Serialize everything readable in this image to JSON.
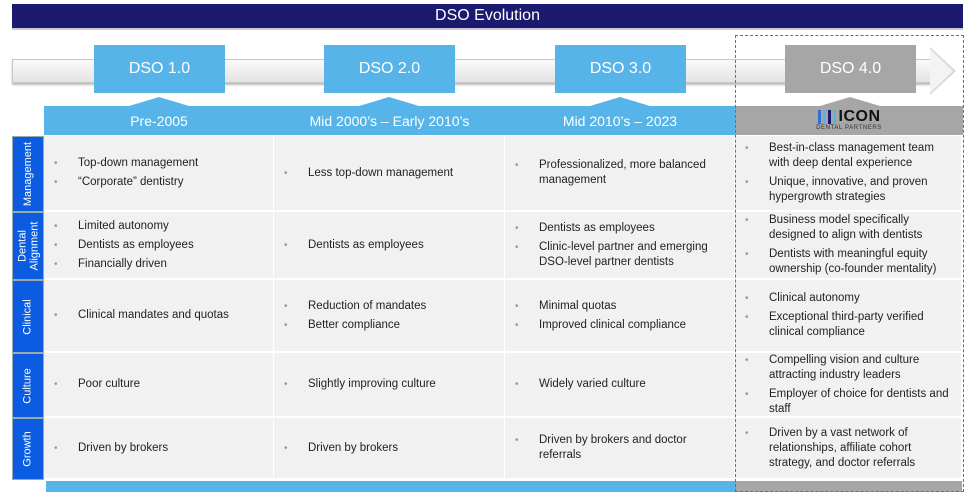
{
  "title": "DSO Evolution",
  "stages": [
    {
      "label": "DSO 1.0",
      "period": "Pre-2005"
    },
    {
      "label": "DSO 2.0",
      "period": "Mid 2000’s – Early 2010’s"
    },
    {
      "label": "DSO 3.0",
      "period": "Mid 2010’s – 2023"
    },
    {
      "label": "DSO 4.0",
      "logo_text": "ICON",
      "logo_sub": "DENTAL PARTNERS"
    }
  ],
  "colors": {
    "title_bg": "#1b1a6e",
    "accent": "#56b4e9",
    "row_label": "#0b5ce0",
    "highlight": "#a6a6a6",
    "dashed_border": "#2b78e4"
  },
  "rows": [
    {
      "label": "Management",
      "cells": [
        [
          "Top-down management",
          "“Corporate” dentistry"
        ],
        [
          "Less top-down management"
        ],
        [
          "Professionalized, more balanced management"
        ],
        [
          "Best-in-class management team with deep dental experience",
          "Unique, innovative, and proven hypergrowth strategies"
        ]
      ]
    },
    {
      "label": "Dental Alignment",
      "cells": [
        [
          "Limited autonomy",
          "Dentists as employees",
          "Financially driven"
        ],
        [
          "Dentists as employees"
        ],
        [
          "Dentists as employees",
          "Clinic-level partner and emerging DSO-level partner dentists"
        ],
        [
          "Business model specifically designed to align with dentists",
          "Dentists with meaningful equity ownership (co-founder mentality)"
        ]
      ]
    },
    {
      "label": "Clinical",
      "cells": [
        [
          "Clinical mandates and quotas"
        ],
        [
          "Reduction of mandates",
          "Better compliance"
        ],
        [
          "Minimal quotas",
          "Improved clinical compliance"
        ],
        [
          "Clinical autonomy",
          "Exceptional third-party verified clinical compliance"
        ]
      ]
    },
    {
      "label": "Culture",
      "cells": [
        [
          "Poor culture"
        ],
        [
          "Slightly improving culture"
        ],
        [
          "Widely varied culture"
        ],
        [
          "Compelling vision and culture attracting industry leaders",
          "Employer of choice for dentists and staff"
        ]
      ]
    },
    {
      "label": "Growth",
      "cells": [
        [
          "Driven by brokers"
        ],
        [
          "Driven by brokers"
        ],
        [
          "Driven by brokers and doctor referrals"
        ],
        [
          "Driven by a vast network of relationships, affiliate cohort strategy, and doctor referrals"
        ]
      ]
    }
  ]
}
